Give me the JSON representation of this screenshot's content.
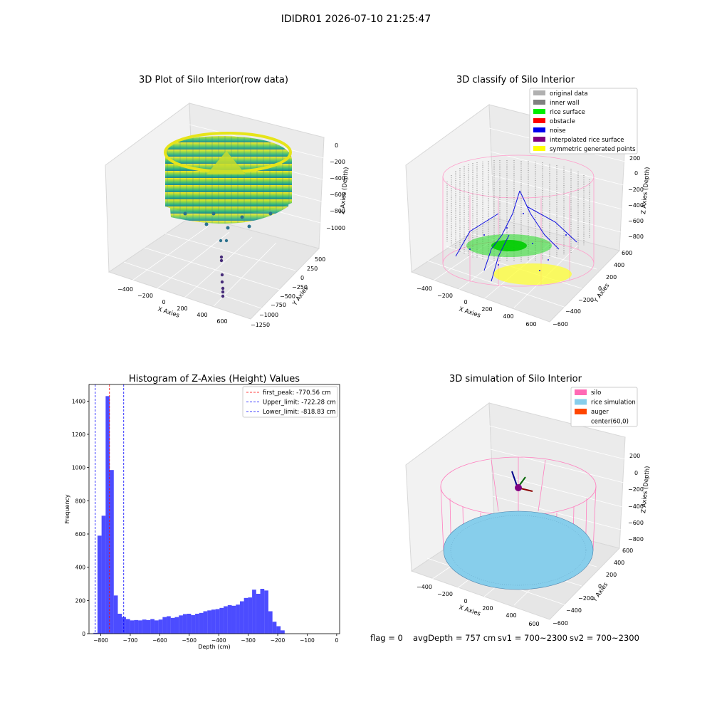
{
  "suptitle": "IDIDR01 2026-07-10 21:25:47",
  "status_line": {
    "flag": "flag = 0",
    "avg_depth": "avgDepth = 757 cm",
    "sv1": "sv1 = 700~2300",
    "sv2": "sv2 = 700~2300"
  },
  "chart_data": [
    {
      "type": "scatter",
      "title": "3D Plot of Silo Interior(row data)",
      "xlabel": "X Axies",
      "ylabel": "Y Axies",
      "zlabel": "Z Axies (Depth)",
      "x_ticks": [
        "−400",
        "−200",
        "0",
        "200",
        "400",
        "600"
      ],
      "y_ticks": [
        "500",
        "250",
        "0",
        "−250",
        "−500",
        "−750",
        "−1000",
        "−1250"
      ],
      "z_ticks": [
        "0",
        "−200",
        "−400",
        "−600",
        "−800",
        "−1000"
      ],
      "colormap": "viridis"
    },
    {
      "type": "scatter",
      "title": "3D classify of Silo Interior",
      "xlabel": "X Axies",
      "ylabel": "Y Axies",
      "zlabel": "Z Axies (Depth)",
      "x_ticks": [
        "−400",
        "−200",
        "0",
        "200",
        "400",
        "600"
      ],
      "y_ticks": [
        "600",
        "400",
        "200",
        "0",
        "−200",
        "−400",
        "−600"
      ],
      "z_ticks": [
        "200",
        "0",
        "−200",
        "−400",
        "−600",
        "−800"
      ],
      "legend": [
        {
          "label": "original data",
          "color": "#b0b0b0"
        },
        {
          "label": "inner wall",
          "color": "#808080"
        },
        {
          "label": "rice surface",
          "color": "#00ee00"
        },
        {
          "label": "obstacle",
          "color": "#ff0000"
        },
        {
          "label": "noise",
          "color": "#0000ee"
        },
        {
          "label": "interpolated rice surface",
          "color": "#800080"
        },
        {
          "label": "symmetric generated points",
          "color": "#ffff00"
        }
      ],
      "legend_position": "top-right"
    },
    {
      "type": "bar",
      "title": "Histogram of Z-Axies (Height) Values",
      "xlabel": "Depth (cm)",
      "ylabel": "Frequency",
      "xlim": [
        -840,
        10
      ],
      "ylim": [
        0,
        1500
      ],
      "x_ticks": [
        -800,
        -700,
        -600,
        -500,
        -400,
        -300,
        -200,
        -100,
        0
      ],
      "y_ticks": [
        0,
        200,
        400,
        600,
        800,
        1000,
        1200,
        1400
      ],
      "bin_start": -825,
      "bin_width": 13.8,
      "values": [
        5,
        590,
        710,
        1430,
        985,
        230,
        120,
        100,
        88,
        80,
        82,
        80,
        85,
        82,
        88,
        80,
        85,
        100,
        105,
        95,
        100,
        110,
        118,
        120,
        112,
        120,
        125,
        135,
        140,
        145,
        148,
        155,
        165,
        172,
        168,
        175,
        195,
        215,
        218,
        265,
        240,
        270,
        260,
        135,
        72,
        45,
        20
      ],
      "bar_color": "#0000ff",
      "lines": [
        {
          "label": "first_peak: -770.56 cm",
          "value": -770.56,
          "color": "#ff0000"
        },
        {
          "label": "Upper_limit: -722.28 cm",
          "value": -722.28,
          "color": "#0000ff"
        },
        {
          "label": "Lower_limit: -818.83 cm",
          "value": -818.83,
          "color": "#0000ff"
        }
      ],
      "legend_position": "top-right"
    },
    {
      "type": "scatter",
      "title": "3D simulation of Silo Interior",
      "xlabel": "X Axies",
      "ylabel": "Y Axies",
      "zlabel": "Z Axies (Depth)",
      "x_ticks": [
        "−400",
        "−200",
        "0",
        "200",
        "400",
        "600"
      ],
      "y_ticks": [
        "600",
        "400",
        "200",
        "0",
        "−200",
        "−400",
        "−600"
      ],
      "z_ticks": [
        "200",
        "0",
        "−200",
        "−400",
        "−600",
        "−800"
      ],
      "legend": [
        {
          "label": "silo",
          "color": "#ff69b4"
        },
        {
          "label": "rice simulation",
          "color": "#87ceeb"
        },
        {
          "label": "auger",
          "color": "#ff4500"
        },
        {
          "label": "center(60,0)",
          "color": ""
        }
      ],
      "legend_position": "top-right"
    }
  ]
}
